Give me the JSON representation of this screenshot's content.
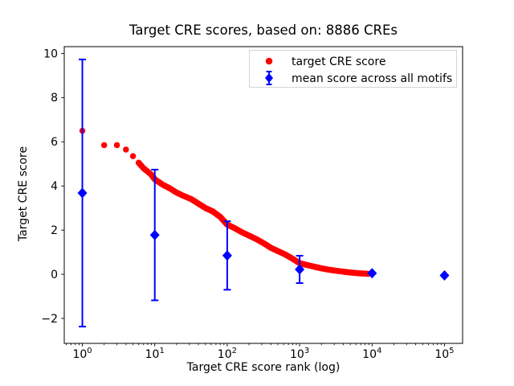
{
  "title": "Target CRE scores, based on: 8886 CREs",
  "axes": {
    "xlabel": "Target CRE score rank (log)",
    "ylabel": "Target CRE score",
    "x_scale": "log",
    "x_tick_values": [
      1,
      10,
      100,
      1000,
      10000,
      100000
    ],
    "x_tick_labels": [
      {
        "base": "10",
        "exp": "0"
      },
      {
        "base": "10",
        "exp": "1"
      },
      {
        "base": "10",
        "exp": "2"
      },
      {
        "base": "10",
        "exp": "3"
      },
      {
        "base": "10",
        "exp": "4"
      },
      {
        "base": "10",
        "exp": "5"
      }
    ],
    "y_tick_values": [
      -2,
      0,
      2,
      4,
      6,
      8,
      10
    ],
    "y_tick_labels": [
      "−2",
      "0",
      "2",
      "4",
      "6",
      "8",
      "10"
    ],
    "xlog_range": [
      -0.25,
      5.25
    ],
    "ylim": [
      -3.13,
      10.31
    ]
  },
  "colors": {
    "target_series": "#ff0000",
    "mean_series": "#0000ff",
    "axis": "#000000",
    "legend_border": "#d4d4d4",
    "background": "#ffffff"
  },
  "legend": {
    "entries": [
      {
        "label": "target CRE score",
        "marker": "circle",
        "color": "#ff0000"
      },
      {
        "label": "mean score across all motifs",
        "marker": "diamond-errorbar",
        "color": "#0000ff"
      }
    ]
  },
  "chart_data": {
    "type": "scatter",
    "title": "Target CRE scores, based on: 8886 CREs",
    "xlabel": "Target CRE score rank (log)",
    "ylabel": "Target CRE score",
    "x_scale": "log",
    "xlim": [
      0.56,
      178000
    ],
    "ylim": [
      -3.13,
      10.31
    ],
    "grid": false,
    "legend_position": "upper right",
    "n_points_total": 8886,
    "series": [
      {
        "name": "target CRE score",
        "marker": "circle",
        "color": "#ff0000",
        "x": [
          1,
          2,
          3,
          4,
          5,
          6,
          7,
          8,
          9,
          10,
          13,
          16,
          20,
          25,
          32,
          40,
          50,
          63,
          80,
          100,
          125,
          160,
          200,
          250,
          320,
          400,
          500,
          630,
          800,
          1000,
          1250,
          1600,
          2000,
          2500,
          3200,
          4000,
          5000,
          6300,
          8000,
          8886
        ],
        "y": [
          6.5,
          5.85,
          5.85,
          5.65,
          5.35,
          5.05,
          4.8,
          4.65,
          4.5,
          4.3,
          4.05,
          3.9,
          3.7,
          3.55,
          3.4,
          3.2,
          3.0,
          2.85,
          2.6,
          2.25,
          2.1,
          1.9,
          1.75,
          1.6,
          1.4,
          1.2,
          1.05,
          0.9,
          0.7,
          0.5,
          0.42,
          0.34,
          0.27,
          0.21,
          0.16,
          0.12,
          0.08,
          0.05,
          0.03,
          0.02
        ]
      },
      {
        "name": "mean score across all motifs",
        "marker": "diamond",
        "color": "#0000ff",
        "x": [
          1,
          10,
          100,
          1000,
          10000,
          100000
        ],
        "y": [
          3.68,
          1.78,
          0.85,
          0.22,
          0.05,
          -0.05
        ],
        "yerr": [
          6.05,
          2.96,
          1.55,
          0.62,
          0,
          0
        ]
      }
    ]
  }
}
